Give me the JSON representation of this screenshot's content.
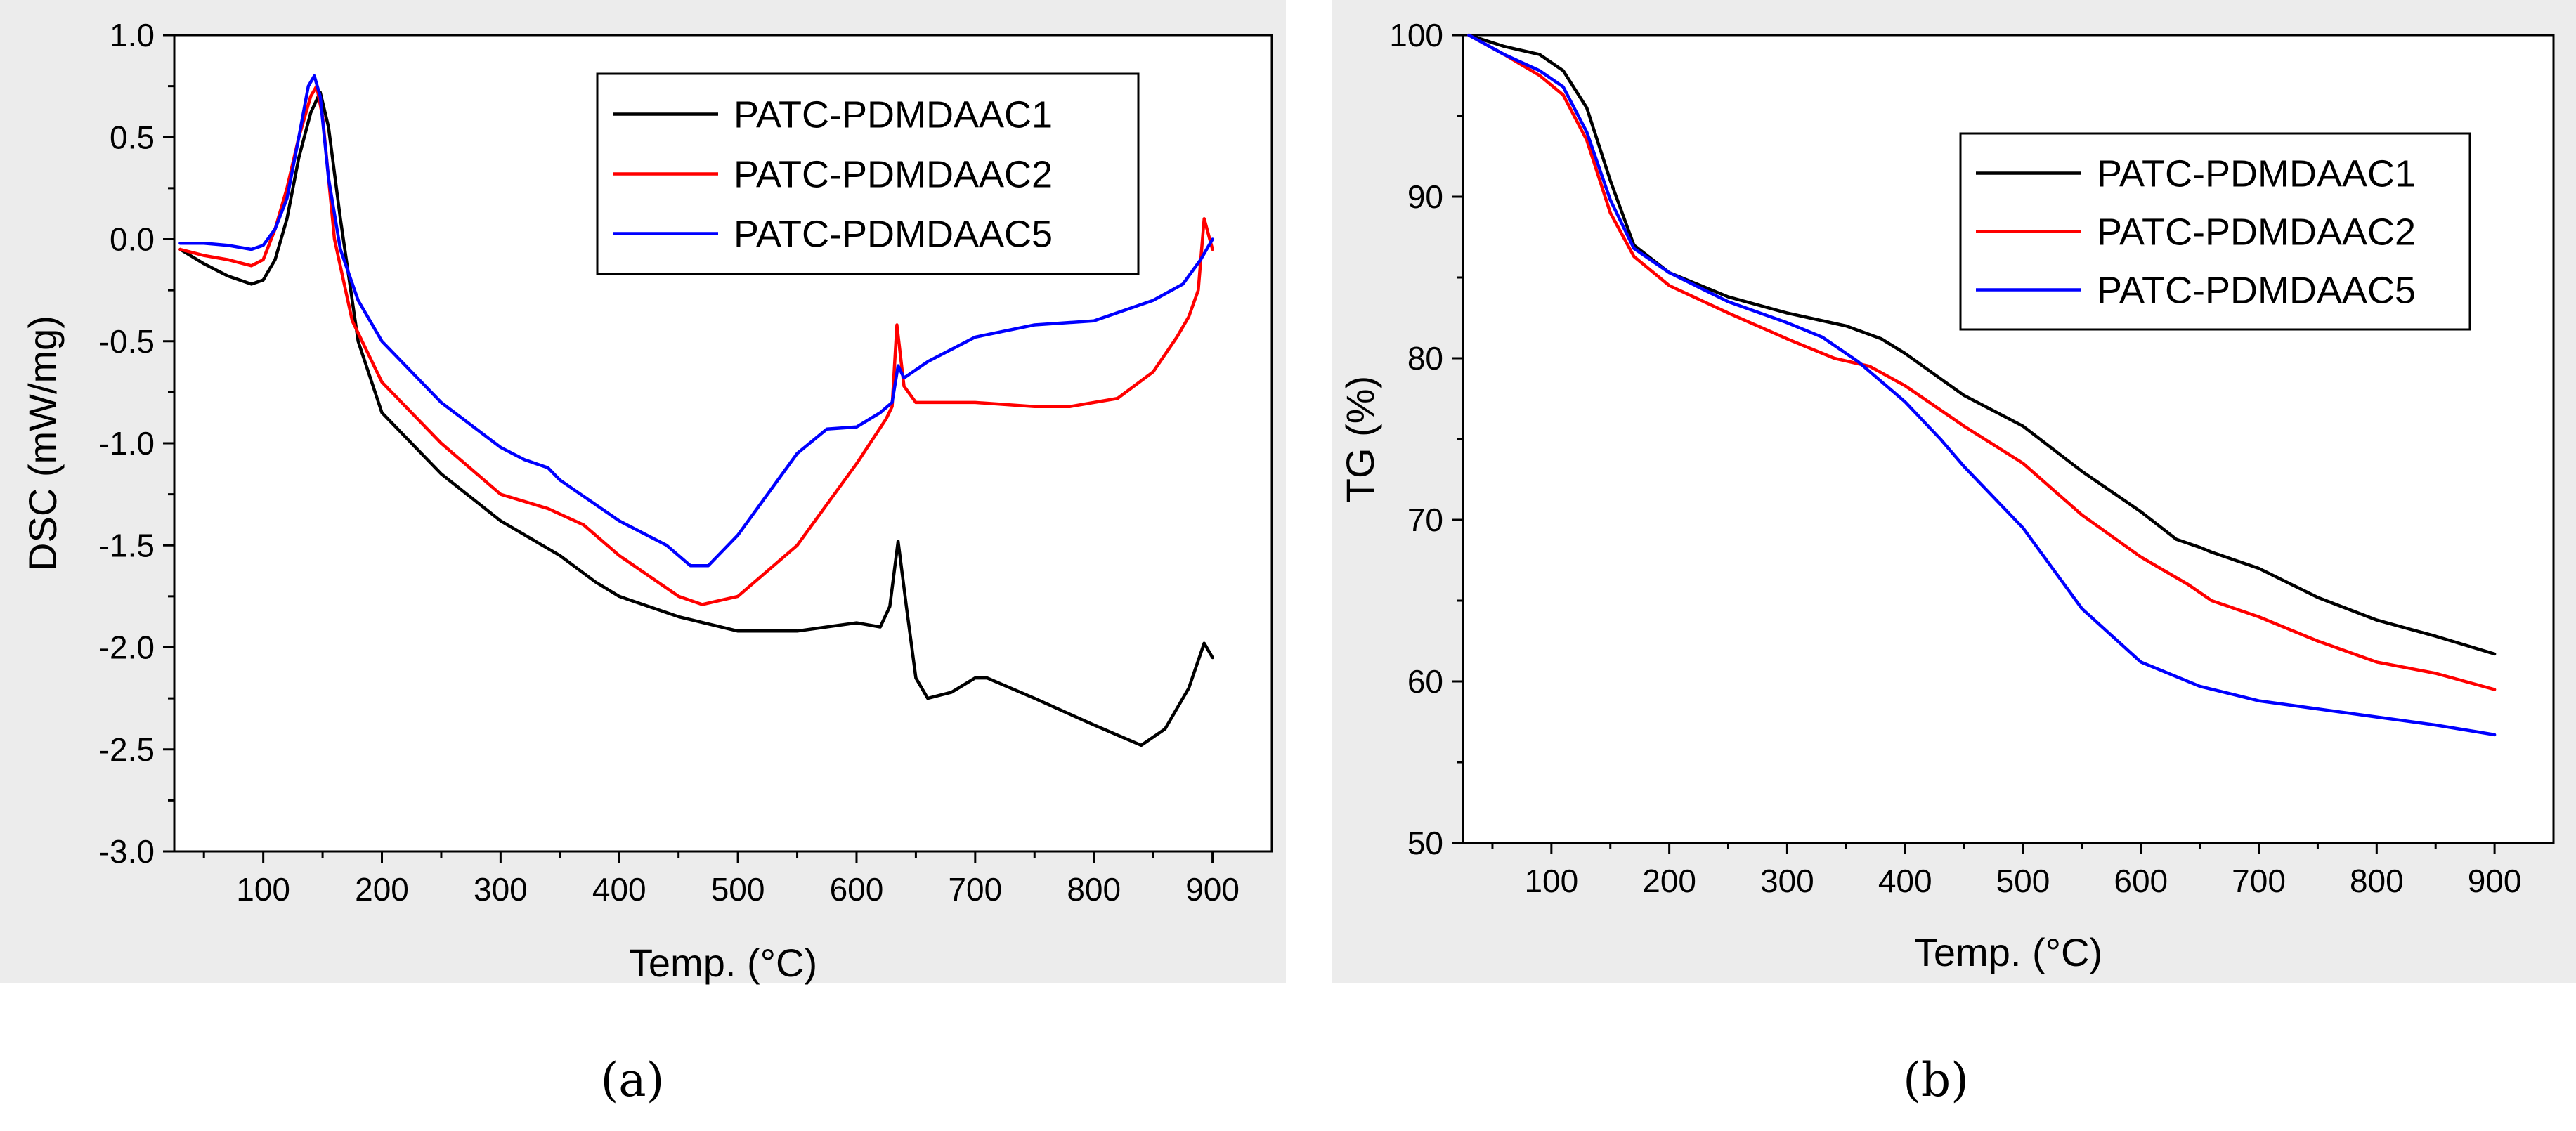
{
  "figure": {
    "caption_a": "(a)",
    "caption_b": "(b)"
  },
  "colors": {
    "PATC-PDMDAAC1": "#000000",
    "PATC-PDMDAAC2": "#ff0000",
    "PATC-PDMDAAC5": "#0000ff"
  },
  "chart_data": [
    {
      "id": "dsc",
      "type": "line",
      "title": "",
      "xlabel": "Temp. (°C)",
      "ylabel": "DSC (mW/mg)",
      "xlim": [
        25,
        950
      ],
      "ylim": [
        -3.0,
        1.0
      ],
      "xticks": [
        100,
        200,
        300,
        400,
        500,
        600,
        700,
        800,
        900
      ],
      "yticks": [
        -3.0,
        -2.5,
        -2.0,
        -1.5,
        -1.0,
        -0.5,
        0.0,
        0.5,
        1.0
      ],
      "ytick_labels": [
        "-3.0",
        "-2.5",
        "-2.0",
        "-1.5",
        "-1.0",
        "-0.5",
        "0.0",
        "0.5",
        "1.0"
      ],
      "legend_position": "top-right",
      "series": [
        {
          "name": "PATC-PDMDAAC1",
          "x": [
            30,
            50,
            70,
            90,
            100,
            110,
            120,
            130,
            140,
            148,
            155,
            165,
            180,
            200,
            250,
            300,
            350,
            380,
            400,
            450,
            500,
            550,
            600,
            620,
            628,
            635,
            642,
            650,
            660,
            680,
            700,
            710,
            750,
            800,
            840,
            860,
            880,
            893,
            900
          ],
          "y": [
            -0.05,
            -0.12,
            -0.18,
            -0.22,
            -0.2,
            -0.1,
            0.1,
            0.4,
            0.62,
            0.72,
            0.55,
            0.1,
            -0.5,
            -0.85,
            -1.15,
            -1.38,
            -1.55,
            -1.68,
            -1.75,
            -1.85,
            -1.92,
            -1.92,
            -1.88,
            -1.9,
            -1.8,
            -1.48,
            -1.8,
            -2.15,
            -2.25,
            -2.22,
            -2.15,
            -2.15,
            -2.25,
            -2.38,
            -2.48,
            -2.4,
            -2.2,
            -1.98,
            -2.05
          ]
        },
        {
          "name": "PATC-PDMDAAC2",
          "x": [
            30,
            50,
            70,
            90,
            100,
            110,
            120,
            130,
            140,
            145,
            150,
            160,
            175,
            200,
            250,
            300,
            340,
            370,
            400,
            450,
            470,
            500,
            550,
            600,
            625,
            630,
            634,
            640,
            650,
            700,
            750,
            780,
            820,
            850,
            870,
            880,
            888,
            893,
            900
          ],
          "y": [
            -0.05,
            -0.08,
            -0.1,
            -0.13,
            -0.1,
            0.05,
            0.25,
            0.5,
            0.7,
            0.75,
            0.6,
            0.0,
            -0.4,
            -0.7,
            -1.0,
            -1.25,
            -1.32,
            -1.4,
            -1.55,
            -1.75,
            -1.79,
            -1.75,
            -1.5,
            -1.1,
            -0.88,
            -0.82,
            -0.42,
            -0.72,
            -0.8,
            -0.8,
            -0.82,
            -0.82,
            -0.78,
            -0.65,
            -0.48,
            -0.38,
            -0.25,
            0.1,
            -0.05
          ]
        },
        {
          "name": "PATC-PDMDAAC5",
          "x": [
            30,
            50,
            70,
            90,
            100,
            110,
            120,
            130,
            138,
            143,
            148,
            155,
            165,
            180,
            200,
            250,
            300,
            320,
            330,
            340,
            350,
            380,
            400,
            440,
            460,
            475,
            500,
            550,
            575,
            600,
            620,
            630,
            635,
            640,
            660,
            700,
            750,
            800,
            850,
            875,
            890,
            900
          ],
          "y": [
            -0.02,
            -0.02,
            -0.03,
            -0.05,
            -0.03,
            0.05,
            0.2,
            0.5,
            0.75,
            0.8,
            0.7,
            0.3,
            -0.05,
            -0.3,
            -0.5,
            -0.8,
            -1.02,
            -1.08,
            -1.1,
            -1.12,
            -1.18,
            -1.3,
            -1.38,
            -1.5,
            -1.6,
            -1.6,
            -1.45,
            -1.05,
            -0.93,
            -0.92,
            -0.85,
            -0.8,
            -0.62,
            -0.68,
            -0.6,
            -0.48,
            -0.42,
            -0.4,
            -0.3,
            -0.22,
            -0.1,
            0.0
          ]
        }
      ]
    },
    {
      "id": "tg",
      "type": "line",
      "title": "",
      "xlabel": "Temp. (°C)",
      "ylabel": "TG (%)",
      "xlim": [
        25,
        950
      ],
      "ylim": [
        50,
        100
      ],
      "xticks": [
        100,
        200,
        300,
        400,
        500,
        600,
        700,
        800,
        900
      ],
      "yticks": [
        50,
        60,
        70,
        80,
        90,
        100
      ],
      "ytick_labels": [
        "50",
        "60",
        "70",
        "80",
        "90",
        "100"
      ],
      "legend_position": "upper-right",
      "series": [
        {
          "name": "PATC-PDMDAAC1",
          "x": [
            30,
            60,
            90,
            110,
            130,
            150,
            170,
            200,
            250,
            300,
            350,
            380,
            400,
            450,
            500,
            550,
            600,
            630,
            650,
            660,
            700,
            750,
            800,
            850,
            900
          ],
          "y": [
            100,
            99.3,
            98.8,
            97.8,
            95.5,
            91,
            87,
            85.3,
            83.8,
            82.8,
            82,
            81.2,
            80.3,
            77.7,
            75.8,
            73,
            70.5,
            68.8,
            68.3,
            68,
            67,
            65.2,
            63.8,
            62.8,
            61.7
          ]
        },
        {
          "name": "PATC-PDMDAAC2",
          "x": [
            30,
            60,
            90,
            110,
            130,
            150,
            170,
            200,
            250,
            300,
            340,
            370,
            400,
            450,
            500,
            550,
            600,
            640,
            660,
            700,
            750,
            800,
            850,
            900
          ],
          "y": [
            100,
            98.8,
            97.5,
            96.3,
            93.5,
            89,
            86.3,
            84.5,
            82.8,
            81.2,
            80,
            79.5,
            78.3,
            75.8,
            73.5,
            70.3,
            67.7,
            66,
            65,
            64,
            62.5,
            61.2,
            60.5,
            59.5
          ]
        },
        {
          "name": "PATC-PDMDAAC5",
          "x": [
            30,
            60,
            90,
            110,
            130,
            150,
            170,
            200,
            250,
            300,
            330,
            360,
            400,
            430,
            450,
            500,
            550,
            600,
            650,
            700,
            750,
            800,
            850,
            900
          ],
          "y": [
            100,
            98.8,
            97.8,
            96.8,
            94,
            89.8,
            86.8,
            85.3,
            83.5,
            82.2,
            81.3,
            79.8,
            77.3,
            75,
            73.3,
            69.5,
            64.5,
            61.2,
            59.7,
            58.8,
            58.3,
            57.8,
            57.3,
            56.7
          ]
        }
      ]
    }
  ]
}
